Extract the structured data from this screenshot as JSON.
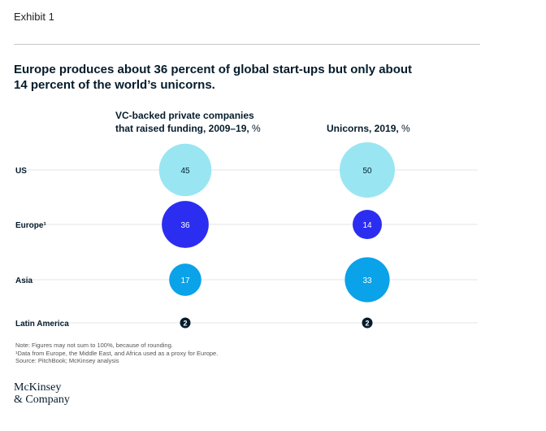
{
  "exhibit_label": "Exhibit 1",
  "title_line1": "Europe produces about 36 percent of global start-ups but only about",
  "title_line2": "14 percent of the world’s unicorns.",
  "chart_data": {
    "type": "bubble",
    "title": "Europe produces about 36 percent of global start-ups but only about 14 percent of the world’s unicorns.",
    "columns": [
      {
        "line1": "VC-backed private companies",
        "line2_bold": "that raised funding, 2009–19,",
        "unit": " %"
      },
      {
        "line1": "",
        "line2_bold": "Unicorns, 2019,",
        "unit": " %"
      }
    ],
    "categories": [
      "US",
      "Europe¹",
      "Asia",
      "Latin America"
    ],
    "series": [
      {
        "name": "VC-backed private companies that raised funding, 2009–19, %",
        "values": [
          45,
          36,
          17,
          2
        ]
      },
      {
        "name": "Unicorns, 2019, %",
        "values": [
          50,
          14,
          33,
          2
        ]
      }
    ],
    "colors": [
      "#99e6f2",
      "#2b2ef0",
      "#0aa2e8",
      "#051c2c"
    ]
  },
  "notes": [
    "Note: Figures may not sum to 100%, because of rounding.",
    "¹Data from Europe, the Middle East, and Africa used as a proxy for Europe.",
    "Source: PitchBook; McKinsey analysis"
  ],
  "logo_line1": "McKinsey",
  "logo_line2": "& Company"
}
